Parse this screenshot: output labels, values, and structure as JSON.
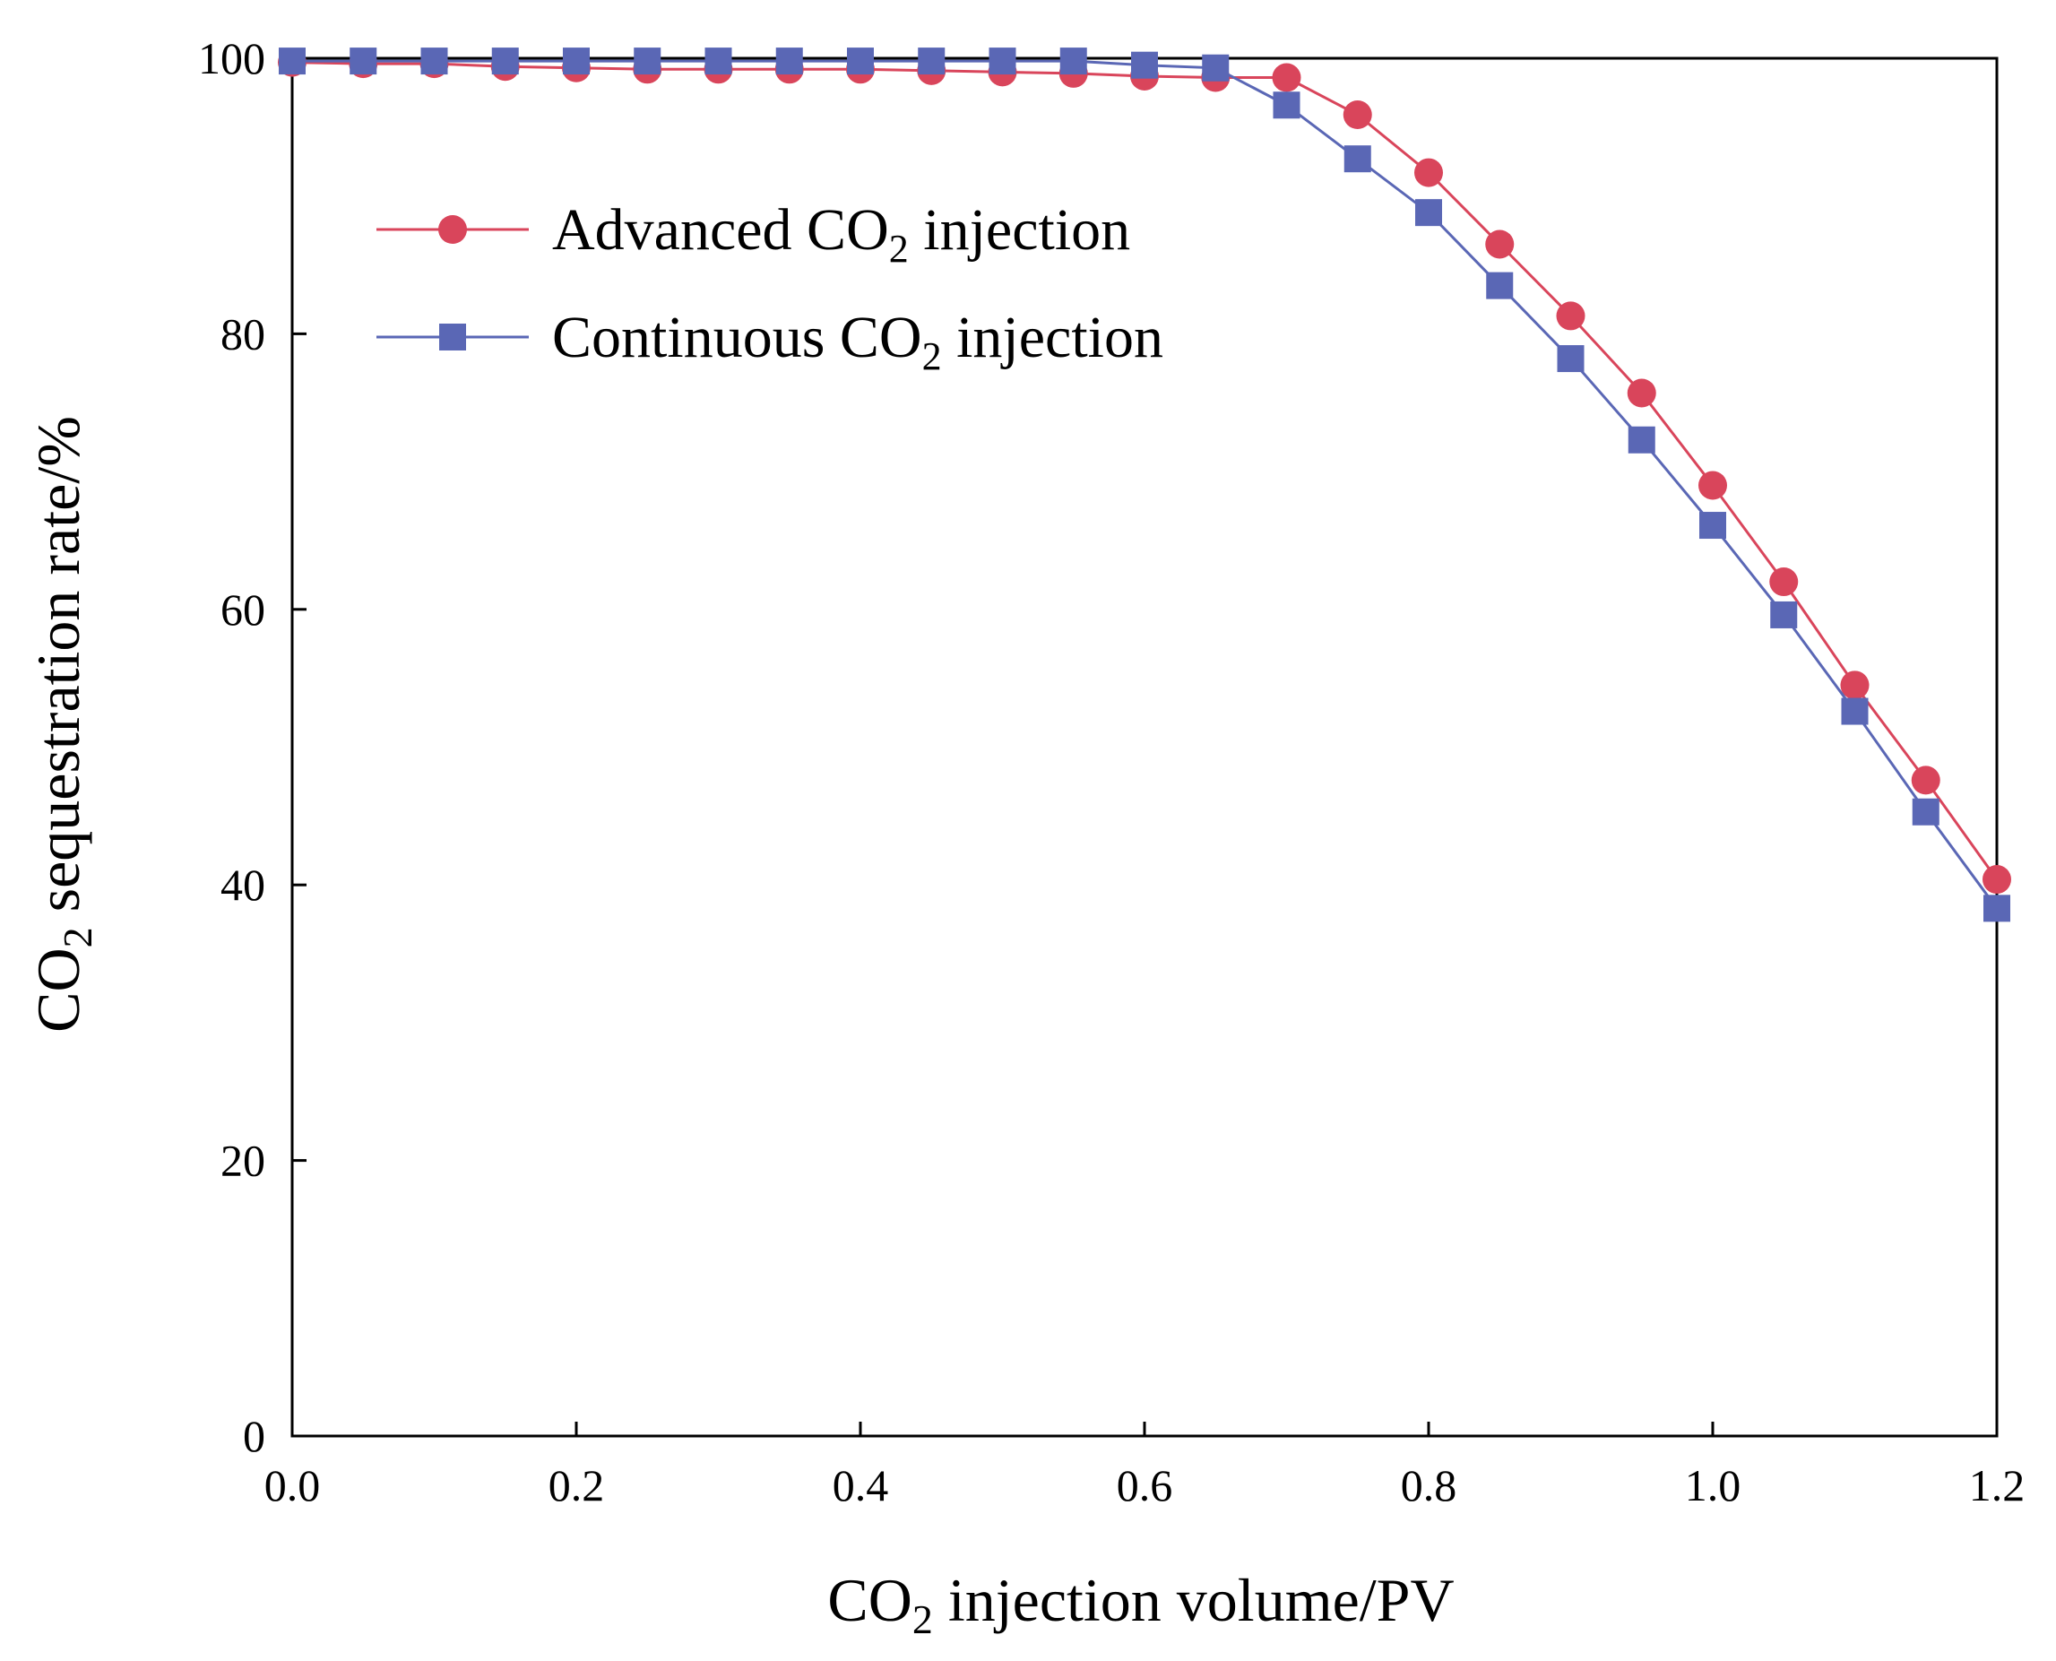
{
  "chart_data": {
    "type": "line",
    "title": "",
    "xlabel": "CO2 injection volume/PV",
    "xlabel_parts": {
      "pre": "CO",
      "sub": "2",
      "post": " injection volume/PV"
    },
    "ylabel": "CO2 sequestration rate/%",
    "ylabel_parts": {
      "pre": "CO",
      "sub": "2",
      "post": " sequestration rate/%"
    },
    "xlim": [
      0,
      1.2
    ],
    "ylim": [
      0,
      100
    ],
    "xticks": [
      "0.0",
      "0.2",
      "0.4",
      "0.6",
      "0.8",
      "1.0",
      "1.2"
    ],
    "yticks": [
      "0",
      "20",
      "40",
      "60",
      "80",
      "100"
    ],
    "legend_position": "upper-left",
    "grid": false,
    "x": [
      0,
      0.05,
      0.1,
      0.15,
      0.2,
      0.25,
      0.3,
      0.35,
      0.4,
      0.45,
      0.5,
      0.55,
      0.6,
      0.65,
      0.7,
      0.75,
      0.8,
      0.85,
      0.9,
      0.95,
      1.0,
      1.05,
      1.1,
      1.15,
      1.2
    ],
    "series": [
      {
        "name": "Advanced CO2 injection",
        "label_parts": {
          "pre": "Advanced CO",
          "sub": "2",
          "post": " injection"
        },
        "color": "#d9455b",
        "marker": "circle",
        "values": [
          99.7,
          99.6,
          99.6,
          99.4,
          99.3,
          99.2,
          99.2,
          99.2,
          99.2,
          99.1,
          99.0,
          98.9,
          98.7,
          98.6,
          98.6,
          95.9,
          91.7,
          86.5,
          81.3,
          75.7,
          69.0,
          62.0,
          54.5,
          47.6,
          40.4
        ]
      },
      {
        "name": "Continuous CO2 injection",
        "label_parts": {
          "pre": "Continuous CO",
          "sub": "2",
          "post": " injection"
        },
        "color": "#5a67b5",
        "marker": "square",
        "values": [
          99.8,
          99.8,
          99.8,
          99.8,
          99.8,
          99.8,
          99.8,
          99.8,
          99.8,
          99.8,
          99.8,
          99.8,
          99.5,
          99.3,
          96.6,
          92.7,
          88.8,
          83.5,
          78.2,
          72.3,
          66.1,
          59.6,
          52.6,
          45.3,
          38.3
        ]
      }
    ]
  }
}
